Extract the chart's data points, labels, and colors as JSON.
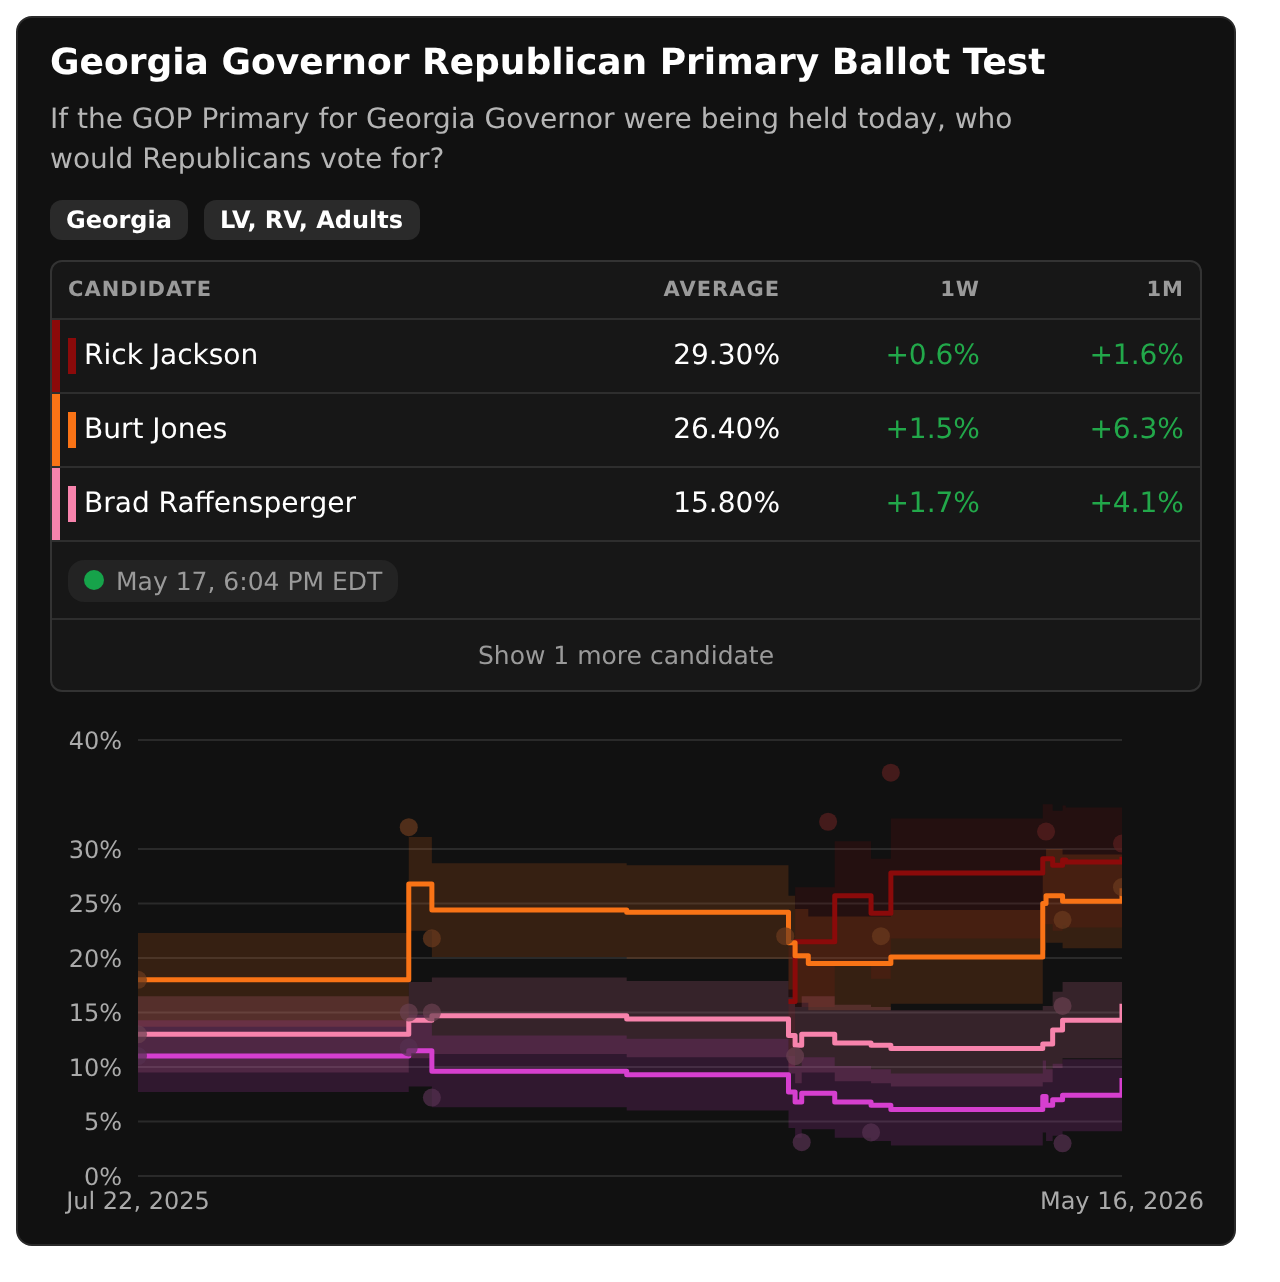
{
  "chart_data": {
    "type": "step",
    "title": "Georgia Governor Republican Primary Ballot Test",
    "subtitle": "If the GOP Primary for Georgia Governor were being held today, who would Republicans vote for?",
    "annotations": [
      "Georgia",
      "LV, RV, Adults",
      "CANDIDATE",
      "AVERAGE",
      "1W",
      "1M",
      "29.30%",
      "+0.6%",
      "+1.6%",
      "26.40%",
      "+1.5%",
      "+6.3%",
      "15.80%",
      "+1.7%",
      "+4.1%",
      "May 17, 6:04 PM EDT",
      "Show 1 more candidate"
    ],
    "x": [
      "2025-07-22",
      "2025-10-12",
      "2025-10-13",
      "2025-10-19",
      "2025-12-17",
      "2026-02-04",
      "2026-02-06",
      "2026-02-08",
      "2026-02-10",
      "2026-02-18",
      "2026-03-01",
      "2026-03-07",
      "2026-04-22",
      "2026-04-23",
      "2026-04-25",
      "2026-04-28",
      "2026-04-29",
      "2026-05-15",
      "2026-05-16"
    ],
    "series": [
      {
        "name": "Rick Jackson",
        "color": "#8b0a0a",
        "x": [
          "2026-02-04",
          "2026-02-06",
          "2026-02-08",
          "2026-02-10",
          "2026-02-18",
          "2026-03-01",
          "2026-03-07",
          "2026-04-22",
          "2026-04-23",
          "2026-04-25",
          "2026-04-28",
          "2026-04-29",
          "2026-05-15",
          "2026-05-16"
        ],
        "values": [
          16.0,
          21.5,
          21.5,
          21.5,
          25.7,
          24.1,
          27.8,
          29.1,
          29.1,
          28.5,
          29.0,
          28.8,
          28.8,
          29.3
        ],
        "lower": [
          10.0,
          15.5,
          15.5,
          15.5,
          19.7,
          18.1,
          21.8,
          23.1,
          23.1,
          22.5,
          23.0,
          22.8,
          22.8,
          23.3
        ],
        "upper": [
          21.0,
          26.5,
          26.5,
          26.5,
          30.7,
          29.1,
          32.8,
          34.1,
          34.1,
          33.5,
          34.0,
          33.8,
          33.8,
          34.3
        ]
      },
      {
        "name": "Burt Jones",
        "color": "#f97316",
        "values": [
          18.0,
          26.8,
          26.8,
          24.4,
          24.2,
          21.4,
          20.2,
          20.2,
          19.5,
          19.5,
          19.5,
          20.1,
          25.0,
          25.7,
          25.7,
          25.2,
          25.2,
          25.2,
          26.4
        ],
        "lower": [
          13.7,
          22.5,
          22.5,
          20.1,
          19.9,
          17.1,
          15.9,
          15.9,
          15.2,
          15.2,
          15.2,
          15.8,
          20.7,
          21.4,
          21.4,
          20.9,
          20.9,
          20.9,
          22.1
        ],
        "upper": [
          22.3,
          31.1,
          31.1,
          28.7,
          28.5,
          25.7,
          24.5,
          24.5,
          23.8,
          23.8,
          23.8,
          24.4,
          29.3,
          30.0,
          30.0,
          29.5,
          29.5,
          29.5,
          30.7
        ]
      },
      {
        "name": "Brad Raffensperger",
        "color": "#f783ac",
        "values": [
          13.0,
          14.3,
          14.3,
          14.7,
          14.4,
          12.9,
          12.0,
          13.0,
          13.0,
          12.2,
          12.0,
          11.7,
          12.1,
          12.1,
          13.4,
          14.3,
          14.3,
          14.3,
          15.8
        ],
        "lower": [
          9.5,
          10.8,
          10.8,
          11.2,
          10.9,
          9.4,
          8.5,
          9.5,
          9.5,
          8.7,
          8.5,
          8.2,
          8.6,
          8.6,
          9.9,
          10.8,
          10.8,
          10.8,
          12.3
        ],
        "upper": [
          16.5,
          17.8,
          17.8,
          18.2,
          17.9,
          16.4,
          15.5,
          16.5,
          16.5,
          15.7,
          15.5,
          15.2,
          15.6,
          15.6,
          16.9,
          17.8,
          17.8,
          17.8,
          19.3
        ]
      },
      {
        "color": "#d63fcf",
        "values": [
          11.0,
          11.5,
          11.5,
          9.6,
          9.3,
          7.7,
          6.8,
          7.6,
          7.6,
          6.8,
          6.5,
          6.1,
          7.3,
          6.5,
          7.0,
          7.4,
          7.4,
          7.4,
          9.0
        ],
        "lower": [
          7.7,
          8.2,
          8.2,
          6.3,
          6.0,
          4.4,
          3.5,
          4.3,
          4.3,
          3.5,
          3.2,
          2.8,
          4.0,
          3.2,
          3.7,
          4.1,
          4.1,
          4.1,
          5.7
        ],
        "upper": [
          14.3,
          14.8,
          14.8,
          12.9,
          12.6,
          11.0,
          10.1,
          10.9,
          10.9,
          10.1,
          9.8,
          9.4,
          10.6,
          9.8,
          10.3,
          10.7,
          10.7,
          10.7,
          12.3
        ]
      },
      {
        "type": "scatter",
        "marker": "circle",
        "color": "#5a2020",
        "x": [
          "2026-02-16",
          "2026-03-07",
          "2026-04-23",
          "2026-05-16"
        ],
        "values": [
          32.5,
          37.0,
          31.6,
          30.5
        ]
      },
      {
        "type": "scatter",
        "marker": "circle",
        "color": "#6b3a1e",
        "x": [
          "2025-07-22",
          "2025-10-12",
          "2025-10-19",
          "2026-02-03",
          "2026-03-04",
          "2026-04-28",
          "2026-05-16"
        ],
        "values": [
          18.0,
          32.0,
          21.8,
          22.0,
          22.0,
          23.5,
          26.5
        ]
      },
      {
        "type": "scatter",
        "marker": "circle",
        "color": "#6a4050",
        "x": [
          "2025-07-22",
          "2025-10-12",
          "2025-10-19",
          "2026-02-06",
          "2026-04-28"
        ],
        "values": [
          13.0,
          15.0,
          15.0,
          11.0,
          15.6
        ]
      },
      {
        "type": "scatter",
        "marker": "circle",
        "color": "#553050",
        "x": [
          "2025-07-22",
          "2025-10-12",
          "2025-10-19",
          "2026-02-08",
          "2026-03-01",
          "2026-04-28"
        ],
        "values": [
          11.0,
          11.8,
          7.2,
          3.1,
          4.0,
          3.0
        ]
      }
    ],
    "xlim": [
      "2025-07-22",
      "2026-05-16"
    ],
    "xticks": [
      {
        "value": "2025-07-22",
        "label": "Jul 22, 2025"
      },
      {
        "value": "2026-05-16",
        "label": "May 16, 2026"
      }
    ],
    "ylim": [
      0,
      40
    ],
    "yticks": [
      {
        "value": 0,
        "label": "0%"
      },
      {
        "value": 5,
        "label": "5%"
      },
      {
        "value": 10,
        "label": "10%"
      },
      {
        "value": 15,
        "label": "15%"
      },
      {
        "value": 20,
        "label": "20%"
      },
      {
        "value": 25,
        "label": "25%"
      },
      {
        "value": 30,
        "label": "30%"
      },
      {
        "value": 40,
        "label": "40%"
      }
    ],
    "grid": "y",
    "legend": "top",
    "marker": "none",
    "line_style": "solid"
  }
}
